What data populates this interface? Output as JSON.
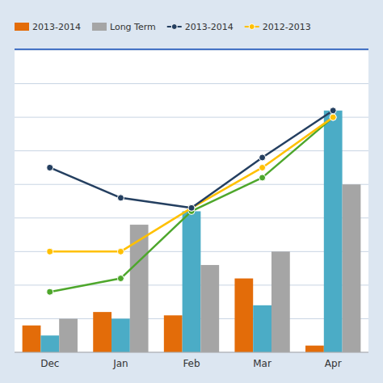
{
  "chart_data": {
    "type": "bar",
    "categories": [
      "Dec",
      "Jan",
      "Feb",
      "Mar",
      "Apr"
    ],
    "series": [
      {
        "name": "2013-2014",
        "type": "bar",
        "color": "#e36c09",
        "values": [
          8,
          12,
          11,
          22,
          2
        ]
      },
      {
        "type": "bar",
        "color": "#4bacc6",
        "values": [
          5,
          10,
          42,
          14,
          72
        ]
      },
      {
        "name": "Long Term",
        "type": "bar",
        "color": "#a5a5a5",
        "values": [
          10,
          38,
          26,
          30,
          50
        ]
      },
      {
        "name": "2013-2014",
        "type": "line",
        "marker": "circle",
        "color": "#243f60",
        "values": [
          55,
          46,
          43,
          58,
          72
        ]
      },
      {
        "name": "2012-2013",
        "type": "line",
        "marker": "circle",
        "color": "#ffc000",
        "values": [
          30,
          30,
          43,
          55,
          70
        ]
      },
      {
        "type": "line",
        "marker": "circle",
        "color": "#4ea72c",
        "values": [
          18,
          22,
          42,
          52,
          70
        ]
      }
    ],
    "ylim": [
      0,
      90
    ],
    "yticks": [
      0,
      10,
      20,
      30,
      40,
      50,
      60,
      70,
      80,
      90
    ],
    "grid": true,
    "tick_labels": "x",
    "legend": "top"
  }
}
